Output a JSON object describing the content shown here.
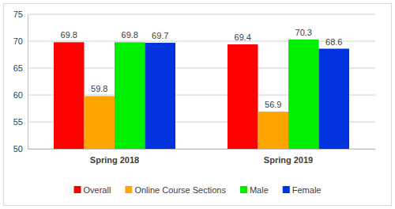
{
  "chart_data": {
    "type": "bar",
    "categories": [
      "Spring 2018",
      "Spring 2019"
    ],
    "series": [
      {
        "name": "Overall",
        "color": "#ff0000",
        "values": [
          69.8,
          69.4
        ]
      },
      {
        "name": "Online Course Sections",
        "color": "#ffa500",
        "values": [
          59.8,
          56.9
        ]
      },
      {
        "name": "Male",
        "color": "#00ee00",
        "values": [
          69.8,
          70.3
        ]
      },
      {
        "name": "Female",
        "color": "#0033dd",
        "values": [
          69.7,
          68.6
        ]
      }
    ],
    "ylim": [
      50,
      75
    ],
    "yticks": [
      50,
      55,
      60,
      65,
      70,
      75
    ],
    "grid": true,
    "data_labels": true,
    "legend": "bottom"
  }
}
